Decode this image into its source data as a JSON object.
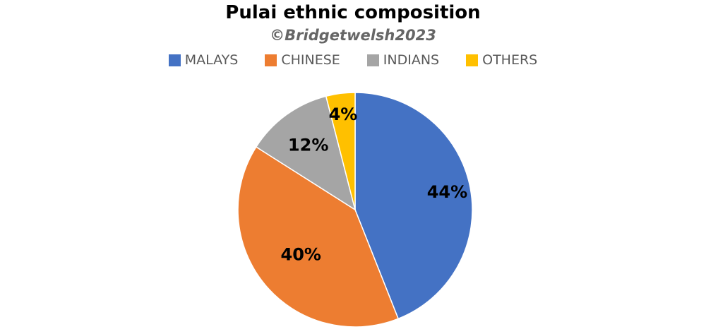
{
  "chart_data": {
    "type": "pie",
    "title": "Pulai ethnic composition",
    "subtitle": "©Bridgetwelsh2023",
    "legend_position": "top",
    "categories": [
      "MALAYS",
      "CHINESE",
      "INDIANS",
      "OTHERS"
    ],
    "values": [
      44,
      40,
      12,
      4
    ],
    "data_labels": [
      "44%",
      "40%",
      "12%",
      "4%"
    ],
    "colors": [
      "#4472C4",
      "#ED7D31",
      "#A5A5A5",
      "#FFC000"
    ]
  }
}
